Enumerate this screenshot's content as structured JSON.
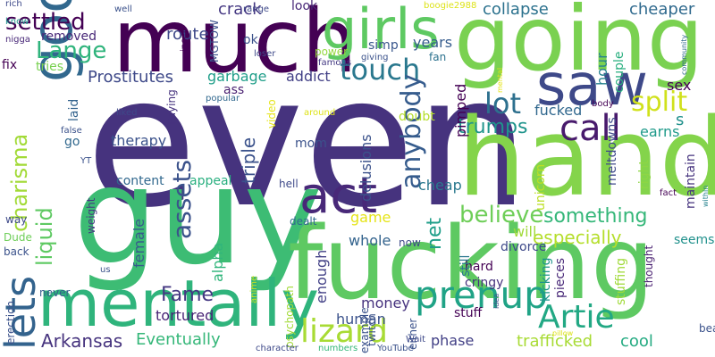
{
  "words": [
    {
      "text": "even",
      "color": "#46337e"
    },
    {
      "text": "guy",
      "color": "#3dbc74"
    },
    {
      "text": "hand",
      "color": "#84d44b"
    },
    {
      "text": "going",
      "color": "#7ad151"
    },
    {
      "text": "much",
      "color": "#440154"
    },
    {
      "text": "fucking",
      "color": "#5ec962"
    },
    {
      "text": "mentally",
      "color": "#2fb47c"
    },
    {
      "text": "saw",
      "color": "#3e4989"
    },
    {
      "text": "girls",
      "color": "#5ec962"
    },
    {
      "text": "act",
      "color": "#482878"
    },
    {
      "text": "good",
      "color": "#31688e"
    },
    {
      "text": "lets",
      "color": "#33638d"
    },
    {
      "text": "prenup",
      "color": "#20a386"
    },
    {
      "text": "call",
      "color": "#481a6c"
    },
    {
      "text": "lizard",
      "color": "#a8db34"
    },
    {
      "text": "Artie",
      "color": "#22a884"
    },
    {
      "text": "split",
      "color": "#d0e11c"
    },
    {
      "text": "touch",
      "color": "#2a788e"
    },
    {
      "text": "lot",
      "color": "#2d708e"
    },
    {
      "text": "anybody",
      "color": "#365c8d"
    },
    {
      "text": "assets",
      "color": "#3b528b"
    },
    {
      "text": "believe",
      "color": "#6ece58"
    },
    {
      "text": "something",
      "color": "#35b779"
    },
    {
      "text": "Lange",
      "color": "#2fb47c"
    },
    {
      "text": "settled",
      "color": "#440154"
    },
    {
      "text": "charisma",
      "color": "#a2da37"
    },
    {
      "text": "liquid",
      "color": "#5ec962"
    },
    {
      "text": "Fame",
      "color": "#453882"
    },
    {
      "text": "net",
      "color": "#1f9e89"
    },
    {
      "text": "especially",
      "color": "#b5de2b"
    },
    {
      "text": "trumps",
      "color": "#1f948c"
    },
    {
      "text": "Prostitutes",
      "color": "#3e4989"
    },
    {
      "text": "Arkansas",
      "color": "#46337e"
    },
    {
      "text": "Eventually",
      "color": "#35b779"
    },
    {
      "text": "trafficked",
      "color": "#a8db34"
    },
    {
      "text": "cool",
      "color": "#25ab82"
    },
    {
      "text": "crack",
      "color": "#453882"
    },
    {
      "text": "route",
      "color": "#3e4989"
    },
    {
      "text": "collapse",
      "color": "#2c728e"
    },
    {
      "text": "cheaper",
      "color": "#306a8e"
    },
    {
      "text": "hour",
      "color": "#26828e"
    },
    {
      "text": "years",
      "color": "#365c8d"
    },
    {
      "text": "fucked",
      "color": "#31688e"
    },
    {
      "text": "earns",
      "color": "#1f9a8a"
    },
    {
      "text": "sex",
      "color": "#440154"
    },
    {
      "text": "garbage",
      "color": "#1f9e89"
    },
    {
      "text": "addict",
      "color": "#424086"
    },
    {
      "text": "therapy",
      "color": "#3b528b"
    },
    {
      "text": "triple",
      "color": "#3b528b"
    },
    {
      "text": "female",
      "color": "#375a8c"
    },
    {
      "text": "alpha",
      "color": "#31b57b"
    },
    {
      "text": "delusions",
      "color": "#3b528b"
    },
    {
      "text": "pimped",
      "color": "#440154"
    },
    {
      "text": "whole",
      "color": "#33638d"
    },
    {
      "text": "cheap",
      "color": "#2a788e"
    },
    {
      "text": "game",
      "color": "#e5e419"
    },
    {
      "text": "will",
      "color": "#a0da39"
    },
    {
      "text": "enough",
      "color": "#424086"
    },
    {
      "text": "money",
      "color": "#46327e"
    },
    {
      "text": "human",
      "color": "#3b528b"
    },
    {
      "text": "phase",
      "color": "#424086"
    },
    {
      "text": "hard",
      "color": "#440154"
    },
    {
      "text": "cringy",
      "color": "#46337e"
    },
    {
      "text": "tortured",
      "color": "#482475"
    },
    {
      "text": "kicking",
      "color": "#1f948c"
    },
    {
      "text": "pieces",
      "color": "#482878"
    },
    {
      "text": "divorce",
      "color": "#3e4989"
    },
    {
      "text": "simp",
      "color": "#39568c"
    },
    {
      "text": "look",
      "color": "#482878"
    },
    {
      "text": "ok",
      "color": "#3b528b"
    },
    {
      "text": "ass",
      "color": "#481f70"
    },
    {
      "text": "removed",
      "color": "#482878"
    },
    {
      "text": "tries",
      "color": "#7ad151"
    },
    {
      "text": "fix",
      "color": "#440154"
    },
    {
      "text": "fan",
      "color": "#2c728e"
    },
    {
      "text": "power",
      "color": "#95d840"
    },
    {
      "text": "famous",
      "color": "#443983"
    },
    {
      "text": "laid",
      "color": "#33638d"
    },
    {
      "text": "go",
      "color": "#31688e"
    },
    {
      "text": "video",
      "color": "#e5e419"
    },
    {
      "text": "mom",
      "color": "#3b528b"
    },
    {
      "text": "hell",
      "color": "#3e4989"
    },
    {
      "text": "appeal",
      "color": "#29af7f"
    },
    {
      "text": "content",
      "color": "#31688e"
    },
    {
      "text": "weight",
      "color": "#453882"
    },
    {
      "text": "way",
      "color": "#3e4989"
    },
    {
      "text": "Dude",
      "color": "#6ece58"
    },
    {
      "text": "back",
      "color": "#3b528b"
    },
    {
      "text": "never",
      "color": "#365c8d"
    },
    {
      "text": "erection",
      "color": "#3b528b"
    },
    {
      "text": "psychopath",
      "color": "#a2da37"
    },
    {
      "text": "example",
      "color": "#3b528b"
    },
    {
      "text": "twitch",
      "color": "#3b528b"
    },
    {
      "text": "either",
      "color": "#3b528b"
    },
    {
      "text": "stuff",
      "color": "#440154"
    },
    {
      "text": "stuffing",
      "color": "#a0da39"
    },
    {
      "text": "thought",
      "color": "#481f70"
    },
    {
      "text": "seems",
      "color": "#21918c"
    },
    {
      "text": "beat",
      "color": "#3b528b"
    },
    {
      "text": "right",
      "color": "#8ed645"
    },
    {
      "text": "maintain",
      "color": "#46337e"
    },
    {
      "text": "fact",
      "color": "#440154"
    },
    {
      "text": "meltdowns",
      "color": "#3e4989"
    },
    {
      "text": "unicorn",
      "color": "#bddf26"
    },
    {
      "text": "still",
      "color": "#2a788e"
    },
    {
      "text": "dealt",
      "color": "#306a8e"
    },
    {
      "text": "now",
      "color": "#3e4989"
    },
    {
      "text": "doubt",
      "color": "#b5de2b"
    },
    {
      "text": "couple",
      "color": "#29af7f"
    },
    {
      "text": "Paying",
      "color": "#46337e"
    },
    {
      "text": "MGTOW",
      "color": "#3b528b"
    },
    {
      "text": "incel",
      "color": "#440154"
    },
    {
      "text": "loser",
      "color": "#3e4989"
    },
    {
      "text": "giving",
      "color": "#3b528b"
    },
    {
      "text": "boogie2988",
      "color": "#dde318"
    },
    {
      "text": "range",
      "color": "#3e4989"
    },
    {
      "text": "well",
      "color": "#3b528b"
    },
    {
      "text": "rich",
      "color": "#3e4989"
    },
    {
      "text": "nigga",
      "color": "#482878"
    },
    {
      "text": "know",
      "color": "#1f948c"
    },
    {
      "text": "community",
      "color": "#31688e"
    },
    {
      "text": "mental",
      "color": "#e5e419"
    },
    {
      "text": "body",
      "color": "#440154"
    },
    {
      "text": "liked",
      "color": "#3e4989"
    },
    {
      "text": "around",
      "color": "#dde318"
    },
    {
      "text": "popular",
      "color": "#31688e"
    },
    {
      "text": "false",
      "color": "#3b528b"
    },
    {
      "text": "YT",
      "color": "#3b528b"
    },
    {
      "text": "us",
      "color": "#3b528b"
    },
    {
      "text": "anime",
      "color": "#c8e020"
    },
    {
      "text": "character",
      "color": "#3e4989"
    },
    {
      "text": "numbers",
      "color": "#35b779"
    },
    {
      "text": "YouTube",
      "color": "#3b528b"
    },
    {
      "text": "Wait",
      "color": "#3e4989"
    },
    {
      "text": "idea",
      "color": "#3e4989"
    },
    {
      "text": "pillow",
      "color": "#dde318"
    },
    {
      "text": "within",
      "color": "#26828e"
    },
    {
      "text": "s",
      "color": "#21918c"
    }
  ]
}
